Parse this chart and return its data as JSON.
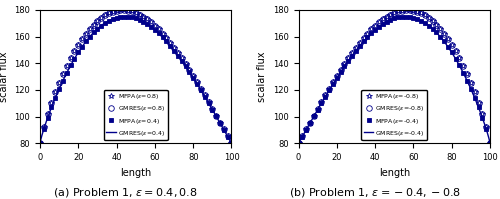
{
  "title_a": "(a) Problem 1, $\\epsilon = 0.4, 0.8$",
  "title_b": "(b) Problem 1, $\\epsilon = -0.4, -0.8$",
  "xlabel": "length",
  "ylabel": "scalar flux",
  "xlim": [
    0,
    100
  ],
  "ylim_a": [
    80,
    180
  ],
  "ylim_b": [
    80,
    180
  ],
  "yticks_a": [
    80,
    100,
    120,
    140,
    160,
    180
  ],
  "yticks_b": [
    80,
    100,
    120,
    140,
    160,
    180
  ],
  "xticks": [
    0,
    20,
    40,
    60,
    80,
    100
  ],
  "color_main": "#00008B",
  "legend_a": [
    "MFPA($\\epsilon$=0.8)",
    "GMRES($\\epsilon$=0.8)",
    "MFPA($\\epsilon$=0.4)",
    "GMRES($\\epsilon$=0.4)"
  ],
  "legend_b": [
    "MFPA($\\epsilon$=-0.8)",
    "GMRES($\\epsilon$=-0.8)",
    "MFPA($\\epsilon$=-0.4)",
    "GMRES($\\epsilon$=-0.4)"
  ],
  "n_points": 51
}
